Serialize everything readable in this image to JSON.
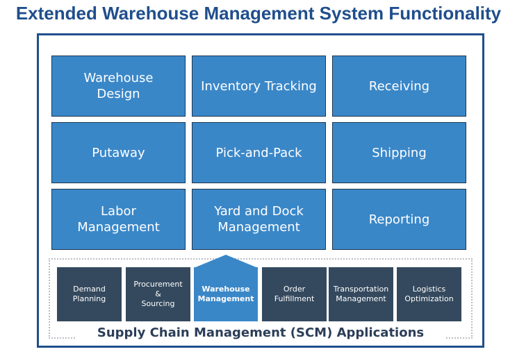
{
  "title": "Extended Warehouse Management System Functionality",
  "functions": [
    "Warehouse\nDesign",
    "Inventory Tracking",
    "Receiving",
    "Putaway",
    "Pick-and-Pack",
    "Shipping",
    "Labor\nManagement",
    "Yard and Dock\nManagement",
    "Reporting"
  ],
  "applications": [
    {
      "label": "Demand\nPlanning",
      "active": false
    },
    {
      "label": "Procurement\n&\nSourcing",
      "active": false
    },
    {
      "label": "Warehouse\nManagement",
      "active": true
    },
    {
      "label": "Order\nFulfillment",
      "active": false
    },
    {
      "label": "Transportation\nManagement",
      "active": false
    },
    {
      "label": "Logistics\nOptimization",
      "active": false
    }
  ],
  "caption": "Supply Chain Management (SCM) Applications",
  "colors": {
    "title": "#1f4e8c",
    "tile": "#3a87c8",
    "app": "#34495e",
    "active": "#3a87c8"
  }
}
